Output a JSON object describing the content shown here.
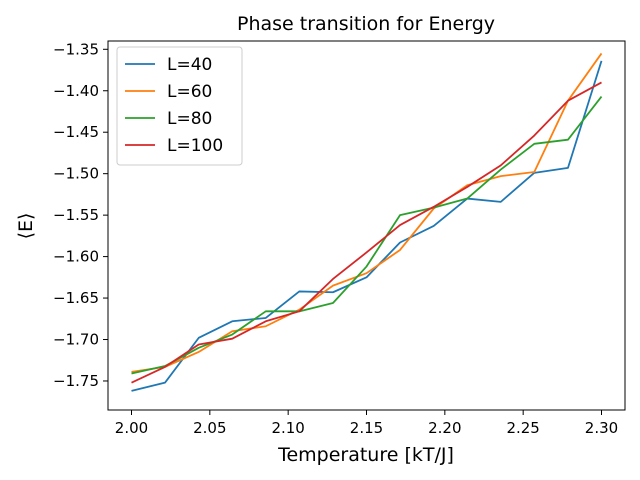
{
  "chart_data": {
    "type": "line",
    "title": "Phase transition for Energy",
    "xlabel": "Temperature [kT/J]",
    "ylabel": "⟨E⟩",
    "xlim": [
      1.985,
      2.315
    ],
    "ylim": [
      -1.785,
      -1.34
    ],
    "x_ticks": [
      2.0,
      2.05,
      2.1,
      2.15,
      2.2,
      2.25,
      2.3
    ],
    "x_tick_labels": [
      "2.00",
      "2.05",
      "2.10",
      "2.15",
      "2.20",
      "2.25",
      "2.30"
    ],
    "y_ticks": [
      -1.75,
      -1.7,
      -1.65,
      -1.6,
      -1.55,
      -1.5,
      -1.45,
      -1.4,
      -1.35
    ],
    "y_tick_labels": [
      "−1.75",
      "−1.70",
      "−1.65",
      "−1.60",
      "−1.55",
      "−1.50",
      "−1.45",
      "−1.40",
      "−1.35"
    ],
    "grid": false,
    "legend_position": "top-left",
    "x": [
      2.0,
      2.0214,
      2.0429,
      2.0643,
      2.0857,
      2.1071,
      2.1286,
      2.15,
      2.1714,
      2.1929,
      2.2143,
      2.2357,
      2.2571,
      2.2786,
      2.3
    ],
    "series": [
      {
        "name": "L=40",
        "color": "#1f77b4",
        "values": [
          -1.762,
          -1.752,
          -1.698,
          -1.678,
          -1.674,
          -1.642,
          -1.643,
          -1.625,
          -1.583,
          -1.563,
          -1.53,
          -1.534,
          -1.499,
          -1.493,
          -1.364
        ]
      },
      {
        "name": "L=60",
        "color": "#ff7f0e",
        "values": [
          -1.739,
          -1.733,
          -1.715,
          -1.69,
          -1.684,
          -1.664,
          -1.635,
          -1.62,
          -1.592,
          -1.542,
          -1.514,
          -1.503,
          -1.498,
          -1.412,
          -1.355
        ]
      },
      {
        "name": "L=80",
        "color": "#2ca02c",
        "values": [
          -1.741,
          -1.732,
          -1.71,
          -1.694,
          -1.666,
          -1.666,
          -1.656,
          -1.612,
          -1.55,
          -1.541,
          -1.53,
          -1.495,
          -1.464,
          -1.459,
          -1.407
        ]
      },
      {
        "name": "L=100",
        "color": "#d62728",
        "values": [
          -1.752,
          -1.733,
          -1.706,
          -1.699,
          -1.678,
          -1.666,
          -1.627,
          -1.595,
          -1.562,
          -1.54,
          -1.516,
          -1.49,
          -1.454,
          -1.412,
          -1.39
        ]
      }
    ]
  }
}
